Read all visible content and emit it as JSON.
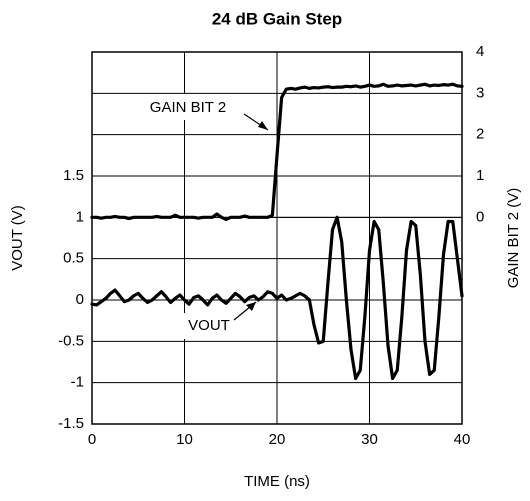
{
  "chart_data": {
    "type": "line",
    "title": "24 dB Gain Step",
    "x_label": "TIME (ns)",
    "y_label": "VOUT (V)",
    "y2_label": "GAIN BIT 2 (V)",
    "annotations": [
      "GAIN BIT 2",
      "VOUT"
    ],
    "x": [
      0,
      0.5,
      1,
      1.5,
      2,
      2.5,
      3,
      3.5,
      4,
      4.5,
      5,
      5.5,
      6,
      6.5,
      7,
      7.5,
      8,
      8.5,
      9,
      9.5,
      10,
      10.5,
      11,
      11.5,
      12,
      12.5,
      13,
      13.5,
      14,
      14.5,
      15,
      15.5,
      16,
      16.5,
      17,
      17.5,
      18,
      18.5,
      19,
      19.5,
      20,
      20.5,
      21,
      21.5,
      22,
      22.5,
      23,
      23.5,
      24,
      24.5,
      25,
      25.5,
      26,
      26.5,
      27,
      27.5,
      28,
      28.5,
      29,
      29.5,
      30,
      30.5,
      31,
      31.5,
      32,
      32.5,
      33,
      33.5,
      34,
      34.5,
      35,
      35.5,
      36,
      36.5,
      37,
      37.5,
      38,
      38.5,
      39,
      39.5,
      40
    ],
    "series": [
      {
        "name": "VOUT",
        "color": "#000000",
        "values": [
          -0.05,
          -0.06,
          -0.02,
          0.02,
          0.08,
          0.12,
          0.05,
          -0.02,
          0.0,
          0.05,
          0.08,
          0.02,
          -0.03,
          0.0,
          0.05,
          0.1,
          0.04,
          -0.03,
          0.02,
          0.06,
          0.0,
          -0.05,
          0.03,
          0.05,
          0.0,
          -0.06,
          0.02,
          0.06,
          0.0,
          -0.04,
          0.02,
          0.08,
          0.04,
          -0.02,
          0.03,
          0.05,
          0.0,
          0.04,
          0.1,
          0.08,
          0.02,
          0.06,
          0.0,
          0.02,
          0.05,
          0.08,
          0.05,
          0.0,
          -0.3,
          -0.52,
          -0.5,
          0.2,
          0.85,
          1.0,
          0.7,
          0.0,
          -0.6,
          -0.95,
          -0.85,
          -0.2,
          0.6,
          0.95,
          0.85,
          0.2,
          -0.55,
          -0.95,
          -0.85,
          -0.2,
          0.6,
          0.95,
          0.9,
          0.3,
          -0.5,
          -0.9,
          -0.85,
          -0.2,
          0.55,
          0.95,
          0.95,
          0.5,
          0.05
        ]
      },
      {
        "name": "GAIN BIT 2",
        "color": "#000000",
        "axis": "y2",
        "values": [
          0,
          0,
          -0.02,
          0,
          0,
          0.02,
          0,
          0,
          -0.03,
          0,
          0,
          0,
          0,
          0,
          0.02,
          0,
          0,
          0,
          0.05,
          0,
          0,
          0,
          0,
          -0.02,
          0,
          0,
          0,
          0.08,
          0,
          -0.05,
          0,
          0,
          0,
          0.03,
          0,
          0,
          0,
          0,
          0,
          0.05,
          1.5,
          2.9,
          3.1,
          3.12,
          3.1,
          3.13,
          3.15,
          3.12,
          3.14,
          3.13,
          3.15,
          3.16,
          3.14,
          3.15,
          3.15,
          3.17,
          3.16,
          3.18,
          3.15,
          3.17,
          3.2,
          3.17,
          3.18,
          3.22,
          3.17,
          3.18,
          3.2,
          3.18,
          3.19,
          3.2,
          3.18,
          3.2,
          3.22,
          3.18,
          3.2,
          3.19,
          3.21,
          3.2,
          3.22,
          3.18,
          3.17
        ]
      }
    ],
    "xlim": [
      0,
      40
    ],
    "xticks": [
      0,
      10,
      20,
      30,
      40
    ],
    "ylim": [
      -1.5,
      3
    ],
    "yticks": [
      -1.5,
      -1,
      -0.5,
      0,
      0.5,
      1,
      1.5
    ],
    "y2lim": [
      -5,
      4
    ],
    "y2ticks": [
      0,
      1,
      2,
      3,
      4
    ],
    "grid": true
  }
}
